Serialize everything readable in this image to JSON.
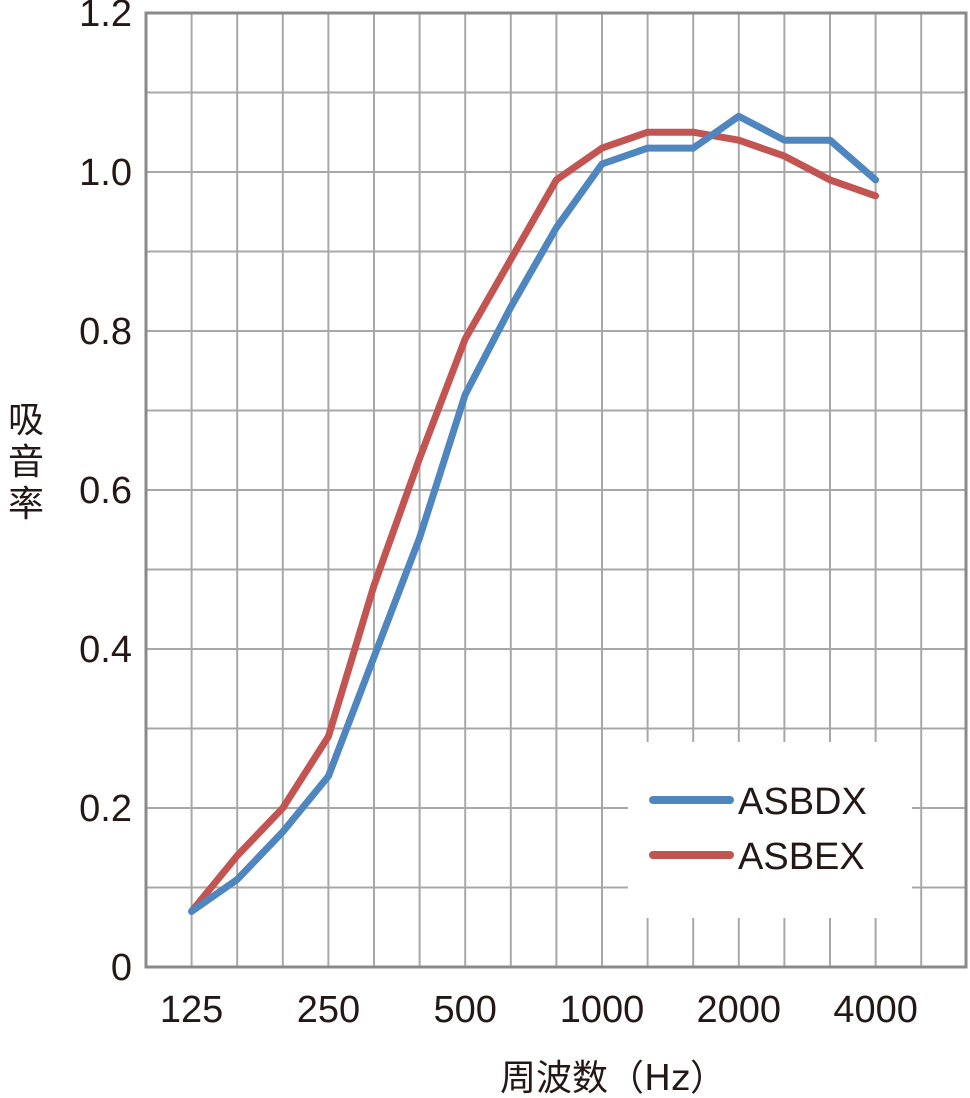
{
  "chart_data": {
    "type": "line",
    "x": [
      125,
      160,
      200,
      250,
      315,
      400,
      500,
      630,
      800,
      1000,
      1250,
      1600,
      2000,
      2500,
      3150,
      4000
    ],
    "series": [
      {
        "name": "ASBDX",
        "color": "#4f86c0",
        "values": [
          0.07,
          0.11,
          0.17,
          0.24,
          0.39,
          0.54,
          0.72,
          0.83,
          0.93,
          1.01,
          1.03,
          1.03,
          1.07,
          1.04,
          1.04,
          0.99
        ]
      },
      {
        "name": "ASBEX",
        "color": "#c25452",
        "values": [
          0.07,
          0.14,
          0.2,
          0.29,
          0.48,
          0.64,
          0.79,
          0.89,
          0.99,
          1.03,
          1.05,
          1.05,
          1.04,
          1.02,
          0.99,
          0.97
        ]
      }
    ],
    "x_tick_labels": [
      {
        "x": 125,
        "label": "125"
      },
      {
        "x": 250,
        "label": "250"
      },
      {
        "x": 500,
        "label": "500"
      },
      {
        "x": 1000,
        "label": "1000"
      },
      {
        "x": 2000,
        "label": "2000"
      },
      {
        "x": 4000,
        "label": "4000"
      }
    ],
    "y_ticks": [
      0,
      0.2,
      0.4,
      0.6,
      0.8,
      1.0,
      1.2
    ],
    "y_tick_labels": [
      "0",
      "0.2",
      "0.4",
      "0.6",
      "0.8",
      "1.0",
      "1.2"
    ],
    "xlabel": "周波数（Hz）",
    "ylabel": "吸音率",
    "ylim": [
      0,
      1.2
    ],
    "x_scale": "one-third octave bands",
    "grid": true,
    "legend": "bottom-right",
    "frame_color": "#8a8a8a",
    "grid_color": "#a8a8a8"
  }
}
